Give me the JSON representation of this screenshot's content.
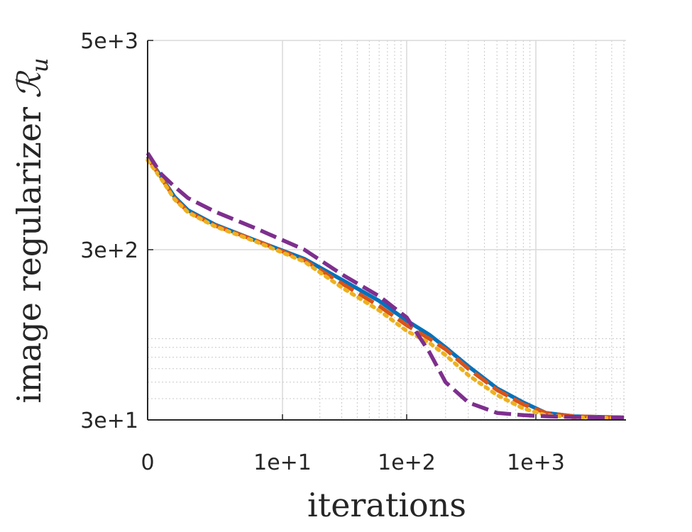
{
  "chart_data": {
    "type": "line",
    "xlabel": "iterations",
    "ylabel": "image regularizer",
    "ylabel_symbol": "ℛ",
    "ylabel_subscript": "u",
    "x_scale": "symlog",
    "y_scale": "log",
    "xlim": [
      0,
      5000
    ],
    "ylim": [
      30,
      5000
    ],
    "x_ticks": [
      {
        "value": 0,
        "label": "0"
      },
      {
        "value": 10,
        "label": "1e+1"
      },
      {
        "value": 100,
        "label": "1e+2"
      },
      {
        "value": 1000,
        "label": "1e+3"
      }
    ],
    "y_ticks": [
      {
        "value": 5000,
        "label": "5e+3"
      },
      {
        "value": 300,
        "label": "3e+2"
      },
      {
        "value": 30,
        "label": "3e+1"
      }
    ],
    "grid": true,
    "legend": "none",
    "series": [
      {
        "color": "#0072BD",
        "dash": "solid",
        "points": [
          [
            0,
            1050
          ],
          [
            1,
            800
          ],
          [
            2,
            610
          ],
          [
            3,
            510
          ],
          [
            5,
            420
          ],
          [
            8,
            340
          ],
          [
            15,
            265
          ],
          [
            30,
            200
          ],
          [
            60,
            150
          ],
          [
            100,
            115
          ],
          [
            150,
            95
          ],
          [
            200,
            80
          ],
          [
            300,
            62
          ],
          [
            500,
            46
          ],
          [
            800,
            38
          ],
          [
            1200,
            33
          ],
          [
            2000,
            31.5
          ],
          [
            5000,
            31
          ]
        ]
      },
      {
        "color": "#D95319",
        "dash": "dashed",
        "points": [
          [
            0,
            1030
          ],
          [
            1,
            790
          ],
          [
            2,
            600
          ],
          [
            3,
            500
          ],
          [
            5,
            415
          ],
          [
            8,
            340
          ],
          [
            15,
            260
          ],
          [
            30,
            190
          ],
          [
            60,
            140
          ],
          [
            100,
            108
          ],
          [
            150,
            90
          ],
          [
            200,
            78
          ],
          [
            300,
            60
          ],
          [
            500,
            45
          ],
          [
            800,
            37
          ],
          [
            1200,
            33
          ],
          [
            2000,
            31.5
          ],
          [
            5000,
            31
          ]
        ]
      },
      {
        "color": "#EDB120",
        "dash": "dotted",
        "points": [
          [
            0,
            1000
          ],
          [
            1,
            780
          ],
          [
            2,
            590
          ],
          [
            3,
            495
          ],
          [
            5,
            410
          ],
          [
            8,
            335
          ],
          [
            15,
            255
          ],
          [
            30,
            180
          ],
          [
            60,
            132
          ],
          [
            100,
            100
          ],
          [
            150,
            85
          ],
          [
            200,
            72
          ],
          [
            300,
            55
          ],
          [
            500,
            42
          ],
          [
            800,
            35
          ],
          [
            1200,
            32
          ],
          [
            2000,
            31
          ],
          [
            5000,
            30.8
          ]
        ]
      },
      {
        "color": "#7E2F8E",
        "dash": "dashed",
        "points": [
          [
            0,
            1100
          ],
          [
            1,
            830
          ],
          [
            2,
            700
          ],
          [
            3,
            600
          ],
          [
            5,
            500
          ],
          [
            8,
            400
          ],
          [
            15,
            300
          ],
          [
            30,
            215
          ],
          [
            60,
            160
          ],
          [
            100,
            120
          ],
          [
            150,
            75
          ],
          [
            200,
            50
          ],
          [
            300,
            38
          ],
          [
            500,
            33
          ],
          [
            800,
            32
          ],
          [
            1200,
            31.5
          ],
          [
            2000,
            31.2
          ],
          [
            5000,
            31
          ]
        ]
      }
    ]
  }
}
